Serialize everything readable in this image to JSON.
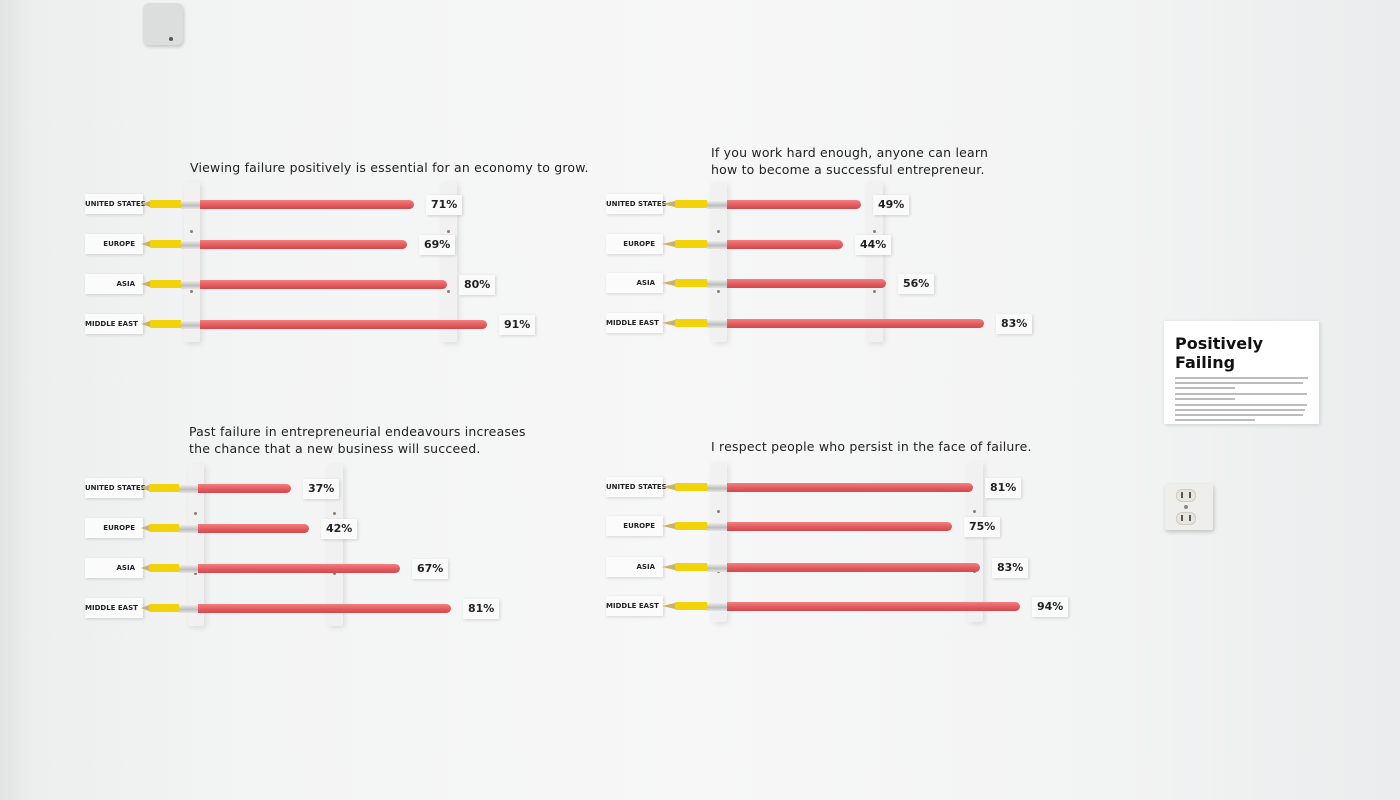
{
  "sign": {
    "title_line1": "Positively",
    "title_line2": "Failing"
  },
  "chart_data": [
    {
      "type": "bar",
      "title": "Viewing failure positively is essential for an economy to grow.",
      "categories": [
        "UNITED STATES",
        "EUROPE",
        "ASIA",
        "MIDDLE EAST"
      ],
      "values": [
        71,
        69,
        80,
        91
      ],
      "labels": [
        "71%",
        "69%",
        "80%",
        "91%"
      ]
    },
    {
      "type": "bar",
      "title": "If you work hard enough, anyone can learn how to become a successful entrepreneur.",
      "title_lines": [
        "If you work hard enough, anyone can learn",
        "how to become a successful entrepreneur."
      ],
      "categories": [
        "UNITED STATES",
        "EUROPE",
        "ASIA",
        "MIDDLE EAST"
      ],
      "values": [
        49,
        44,
        56,
        83
      ],
      "labels": [
        "49%",
        "44%",
        "56%",
        "83%"
      ]
    },
    {
      "type": "bar",
      "title": "Past failure in entrepreneurial endeavours increases the chance that a new business will succeed.",
      "title_lines": [
        "Past failure in entrepreneurial endeavours increases",
        "the chance that a new business will succeed."
      ],
      "categories": [
        "UNITED STATES",
        "EUROPE",
        "ASIA",
        "MIDDLE EAST"
      ],
      "values": [
        37,
        42,
        67,
        81
      ],
      "labels": [
        "37%",
        "42%",
        "67%",
        "81%"
      ]
    },
    {
      "type": "bar",
      "title": "I respect people who persist in the face of failure.",
      "categories": [
        "UNITED STATES",
        "EUROPE",
        "ASIA",
        "MIDDLE EAST"
      ],
      "values": [
        81,
        75,
        83,
        94
      ],
      "labels": [
        "81%",
        "75%",
        "83%",
        "94%"
      ]
    }
  ]
}
